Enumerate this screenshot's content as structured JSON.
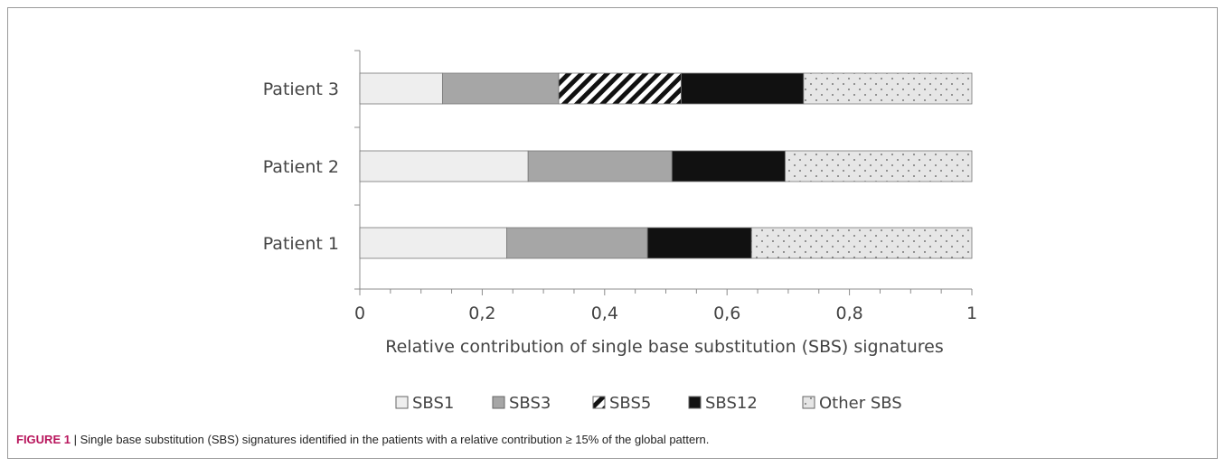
{
  "chart_data": {
    "type": "bar",
    "stacked": true,
    "orientation": "horizontal",
    "categories": [
      "Patient 3",
      "Patient 2",
      "Patient 1"
    ],
    "series": [
      {
        "name": "SBS1",
        "values": [
          0.135,
          0.275,
          0.24
        ],
        "color": "#eeeeee",
        "pattern": "solid"
      },
      {
        "name": "SBS3",
        "values": [
          0.19,
          0.235,
          0.23
        ],
        "color": "#a6a6a6",
        "pattern": "solid"
      },
      {
        "name": "SBS5",
        "values": [
          0.2,
          0.0,
          0.0
        ],
        "color": "#ffffff",
        "pattern": "diagonal-stripes"
      },
      {
        "name": "SBS12",
        "values": [
          0.2,
          0.185,
          0.17
        ],
        "color": "#111111",
        "pattern": "solid"
      },
      {
        "name": "Other SBS",
        "values": [
          0.275,
          0.305,
          0.36
        ],
        "color": "#e6e6e6",
        "pattern": "dots"
      }
    ],
    "xlim": [
      0,
      1
    ],
    "xticks": [
      0,
      0.2,
      0.4,
      0.6,
      0.8,
      1
    ],
    "xtick_labels": [
      "0",
      "0,2",
      "0,4",
      "0,6",
      "0,8",
      "1"
    ],
    "xlabel": "Relative contribution of single base substitution (SBS) signatures",
    "ylabel": "",
    "legend_position": "bottom",
    "grid": false
  },
  "caption": {
    "label": "FIGURE 1",
    "separator": " | ",
    "text": "Single base substitution (SBS) signatures identified in the patients with a relative contribution ≥ 15% of the global pattern."
  }
}
